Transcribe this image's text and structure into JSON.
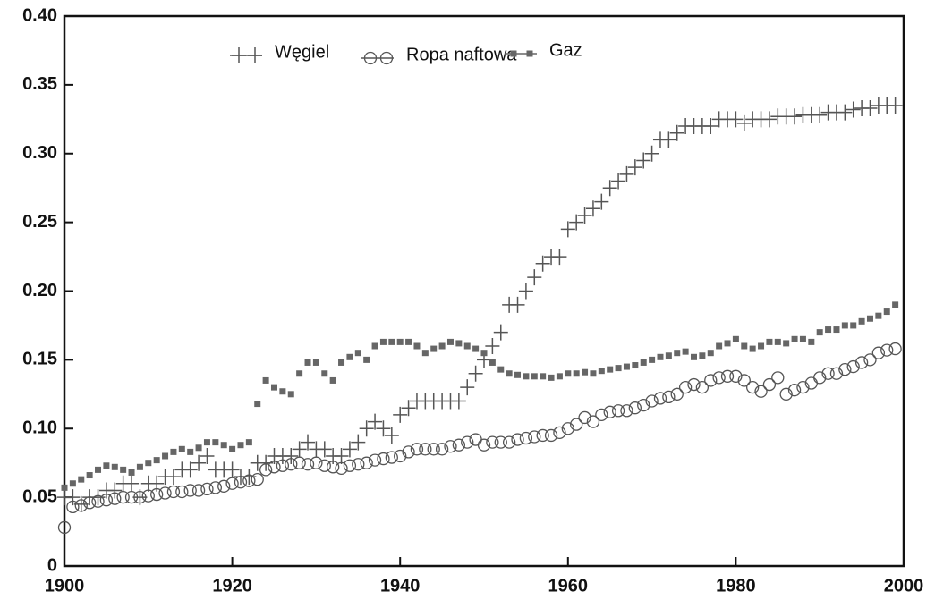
{
  "chart_data": {
    "type": "scatter",
    "x": [
      1900,
      1901,
      1902,
      1903,
      1904,
      1905,
      1906,
      1907,
      1908,
      1909,
      1910,
      1911,
      1912,
      1913,
      1914,
      1915,
      1916,
      1917,
      1918,
      1919,
      1920,
      1921,
      1922,
      1923,
      1924,
      1925,
      1926,
      1927,
      1928,
      1929,
      1930,
      1931,
      1932,
      1933,
      1934,
      1935,
      1936,
      1937,
      1938,
      1939,
      1940,
      1941,
      1942,
      1943,
      1944,
      1945,
      1946,
      1947,
      1948,
      1949,
      1950,
      1951,
      1952,
      1953,
      1954,
      1955,
      1956,
      1957,
      1958,
      1959,
      1960,
      1961,
      1962,
      1963,
      1964,
      1965,
      1966,
      1967,
      1968,
      1969,
      1970,
      1971,
      1972,
      1973,
      1974,
      1975,
      1976,
      1977,
      1978,
      1979,
      1980,
      1981,
      1982,
      1983,
      1984,
      1985,
      1986,
      1987,
      1988,
      1989,
      1990,
      1991,
      1992,
      1993,
      1994,
      1995,
      1996,
      1997,
      1998,
      1999
    ],
    "series": [
      {
        "name": "Węgiel",
        "color": "#555555",
        "marker": "plus",
        "values": [
          0.05,
          0.05,
          0.045,
          0.05,
          0.05,
          0.055,
          0.055,
          0.06,
          0.06,
          0.05,
          0.06,
          0.06,
          0.065,
          0.065,
          0.07,
          0.07,
          0.075,
          0.08,
          0.07,
          0.07,
          0.07,
          0.065,
          0.065,
          0.075,
          0.075,
          0.08,
          0.08,
          0.08,
          0.085,
          0.09,
          0.085,
          0.085,
          0.08,
          0.08,
          0.085,
          0.09,
          0.1,
          0.105,
          0.1,
          0.095,
          0.11,
          0.115,
          0.12,
          0.12,
          0.12,
          0.12,
          0.12,
          0.12,
          0.13,
          0.14,
          0.15,
          0.16,
          0.17,
          0.19,
          0.19,
          0.2,
          0.21,
          0.22,
          0.225,
          0.225,
          0.245,
          0.25,
          0.255,
          0.26,
          0.265,
          0.275,
          0.28,
          0.285,
          0.29,
          0.295,
          0.3,
          0.31,
          0.31,
          0.315,
          0.32,
          0.32,
          0.32,
          0.32,
          0.325,
          0.325,
          0.325,
          0.322,
          0.325,
          0.325,
          0.325,
          0.327,
          0.327,
          0.327,
          0.328,
          0.328,
          0.328,
          0.33,
          0.33,
          0.33,
          0.332,
          0.333,
          0.333,
          0.335,
          0.335,
          0.335
        ]
      },
      {
        "name": "Ropa naftowa",
        "color": "#555555",
        "marker": "circle",
        "values": [
          0.028,
          0.043,
          0.044,
          0.046,
          0.047,
          0.048,
          0.049,
          0.05,
          0.05,
          0.05,
          0.051,
          0.052,
          0.053,
          0.054,
          0.054,
          0.055,
          0.055,
          0.056,
          0.057,
          0.058,
          0.06,
          0.061,
          0.062,
          0.063,
          0.07,
          0.072,
          0.073,
          0.074,
          0.075,
          0.074,
          0.075,
          0.073,
          0.072,
          0.071,
          0.073,
          0.074,
          0.075,
          0.077,
          0.078,
          0.079,
          0.08,
          0.083,
          0.085,
          0.085,
          0.085,
          0.085,
          0.087,
          0.088,
          0.09,
          0.092,
          0.088,
          0.09,
          0.09,
          0.09,
          0.092,
          0.093,
          0.094,
          0.095,
          0.095,
          0.097,
          0.1,
          0.103,
          0.108,
          0.105,
          0.11,
          0.112,
          0.113,
          0.113,
          0.115,
          0.117,
          0.12,
          0.122,
          0.123,
          0.125,
          0.13,
          0.132,
          0.13,
          0.135,
          0.137,
          0.138,
          0.138,
          0.135,
          0.13,
          0.127,
          0.132,
          0.137,
          0.125,
          0.128,
          0.13,
          0.133,
          0.137,
          0.14,
          0.14,
          0.143,
          0.145,
          0.148,
          0.15,
          0.155,
          0.157,
          0.158
        ]
      },
      {
        "name": "Gaz",
        "color": "#666666",
        "marker": "square",
        "values": [
          0.057,
          0.06,
          0.063,
          0.066,
          0.07,
          0.073,
          0.072,
          0.07,
          0.068,
          0.072,
          0.075,
          0.077,
          0.08,
          0.083,
          0.085,
          0.083,
          0.086,
          0.09,
          0.09,
          0.088,
          0.085,
          0.088,
          0.09,
          0.118,
          0.135,
          0.13,
          0.127,
          0.125,
          0.14,
          0.148,
          0.148,
          0.14,
          0.135,
          0.148,
          0.152,
          0.155,
          0.15,
          0.16,
          0.163,
          0.163,
          0.163,
          0.163,
          0.16,
          0.155,
          0.158,
          0.16,
          0.163,
          0.162,
          0.16,
          0.158,
          0.155,
          0.148,
          0.143,
          0.14,
          0.139,
          0.138,
          0.138,
          0.138,
          0.137,
          0.138,
          0.14,
          0.14,
          0.141,
          0.14,
          0.142,
          0.143,
          0.144,
          0.145,
          0.146,
          0.148,
          0.15,
          0.152,
          0.153,
          0.155,
          0.156,
          0.152,
          0.153,
          0.155,
          0.16,
          0.162,
          0.165,
          0.16,
          0.158,
          0.16,
          0.163,
          0.163,
          0.162,
          0.165,
          0.165,
          0.163,
          0.17,
          0.172,
          0.172,
          0.175,
          0.175,
          0.178,
          0.18,
          0.182,
          0.185,
          0.19
        ]
      }
    ],
    "xlim": [
      1900,
      2000
    ],
    "xticks": [
      1900,
      1920,
      1940,
      1960,
      1980,
      2000
    ],
    "ylim": [
      0,
      0.4
    ],
    "yticks": [
      0,
      0.05,
      {
        "value": 0.1,
        "label": "0.10"
      },
      0.15,
      {
        "value": 0.2,
        "label": "0.20"
      },
      0.25,
      {
        "value": 0.3,
        "label": "0.30"
      },
      0.35,
      {
        "value": 0.4,
        "label": "0.40"
      }
    ],
    "grid": false,
    "legend": "top"
  }
}
